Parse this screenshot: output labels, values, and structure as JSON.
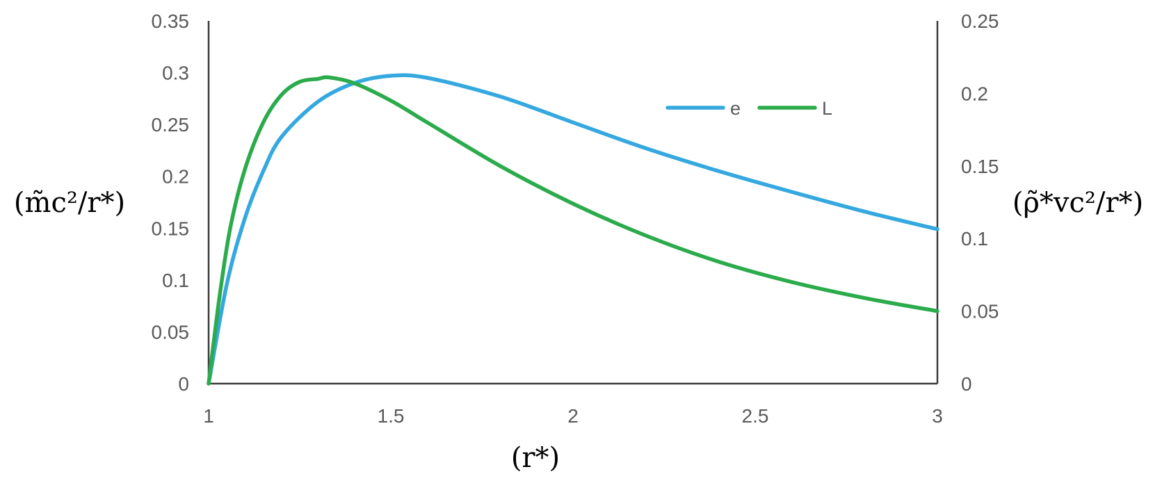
{
  "chart_data": {
    "type": "line",
    "xlabel": "(r*)",
    "ylabel_left": "(m̃c²/r*)",
    "ylabel_right": "(ρ̃*vc²/r*)",
    "xlim": [
      1,
      3
    ],
    "ylim_left": [
      0,
      0.35
    ],
    "ylim_right": [
      0,
      0.25
    ],
    "x_ticks": [
      "1",
      "1.5",
      "2",
      "2.5",
      "3"
    ],
    "y_ticks_left": [
      "0",
      "0.05",
      "0.1",
      "0.15",
      "0.2",
      "0.25",
      "0.3",
      "0.35"
    ],
    "y_ticks_right": [
      "0",
      "0.05",
      "0.1",
      "0.15",
      "0.2",
      "0.25"
    ],
    "grid": false,
    "legend_position": "top-right",
    "series": [
      {
        "name": "e",
        "axis": "left",
        "color": "#35a8e0",
        "x": [
          1.0,
          1.05,
          1.1,
          1.15,
          1.2,
          1.3,
          1.4,
          1.5,
          1.6,
          1.8,
          2.0,
          2.2,
          2.4,
          2.6,
          2.8,
          3.0
        ],
        "y": [
          0.0,
          0.096,
          0.16,
          0.205,
          0.238,
          0.272,
          0.29,
          0.297,
          0.295,
          0.277,
          0.252,
          0.227,
          0.205,
          0.185,
          0.166,
          0.149
        ]
      },
      {
        "name": "L",
        "axis": "right",
        "color": "#2bab4b",
        "x": [
          1.0,
          1.03,
          1.06,
          1.1,
          1.15,
          1.2,
          1.25,
          1.3,
          1.33,
          1.4,
          1.5,
          1.6,
          1.8,
          2.0,
          2.2,
          2.4,
          2.6,
          2.8,
          3.0
        ],
        "y": [
          0.0,
          0.06,
          0.108,
          0.148,
          0.18,
          0.199,
          0.208,
          0.21,
          0.211,
          0.207,
          0.195,
          0.18,
          0.15,
          0.124,
          0.102,
          0.084,
          0.07,
          0.059,
          0.05
        ]
      }
    ]
  }
}
